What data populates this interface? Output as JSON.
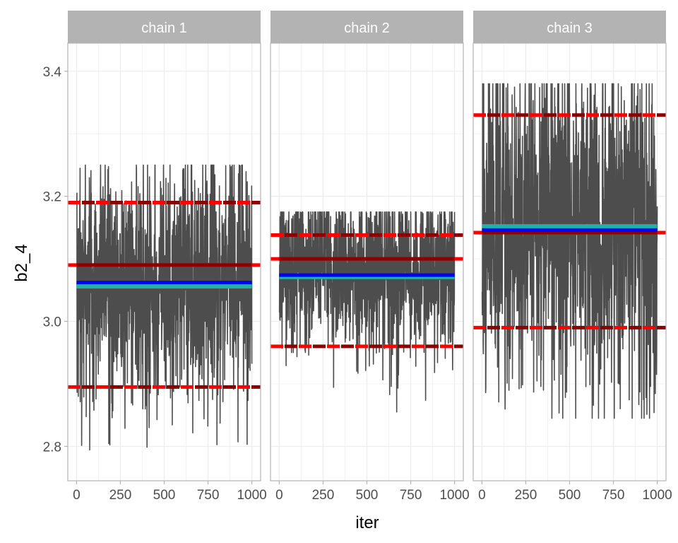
{
  "chart_data": {
    "type": "line",
    "xlabel": "iter",
    "ylabel": "b2_4",
    "ylim": [
      2.745,
      3.445
    ],
    "xlim": [
      -50,
      1050
    ],
    "yticks": [
      2.8,
      3.0,
      3.2,
      3.4
    ],
    "ytick_labels": [
      "2.8",
      "3.0",
      "3.2",
      "3.4"
    ],
    "xticks": [
      0,
      250,
      500,
      750,
      1000
    ],
    "xtick_labels": [
      "0",
      "250",
      "500",
      "750",
      "1000"
    ],
    "grid": true,
    "colors": {
      "trace": "#4d4d4d",
      "interval": "#ff0000",
      "interval_dash": "#8b0000",
      "mean": "#0000ff",
      "median": "#20b2aa",
      "reference": "#8b0000",
      "reference_edge": "#ff0000",
      "strip_bg": "#b3b3b3",
      "grid": "#ebebeb",
      "panel_border": "#b3b3b3"
    },
    "panels": [
      {
        "label": "chain 1",
        "iterations": 1000,
        "trace_center": 3.06,
        "trace_spread": 0.145,
        "trace_min": 2.775,
        "trace_max": 3.25,
        "interval_low": 2.895,
        "interval_high": 3.19,
        "reference": 3.09,
        "mean": 3.062,
        "median": 3.056
      },
      {
        "label": "chain 2",
        "iterations": 1000,
        "trace_center": 3.075,
        "trace_spread": 0.105,
        "trace_min": 2.855,
        "trace_max": 3.175,
        "interval_low": 2.96,
        "interval_high": 3.138,
        "reference": 3.1,
        "mean": 3.074,
        "median": 3.071
      },
      {
        "label": "chain 3",
        "iterations": 1000,
        "trace_center": 3.15,
        "trace_spread": 0.2,
        "trace_min": 2.845,
        "trace_max": 3.38,
        "interval_low": 2.99,
        "interval_high": 3.33,
        "reference": 3.142,
        "mean": 3.146,
        "median": 3.152
      }
    ]
  }
}
